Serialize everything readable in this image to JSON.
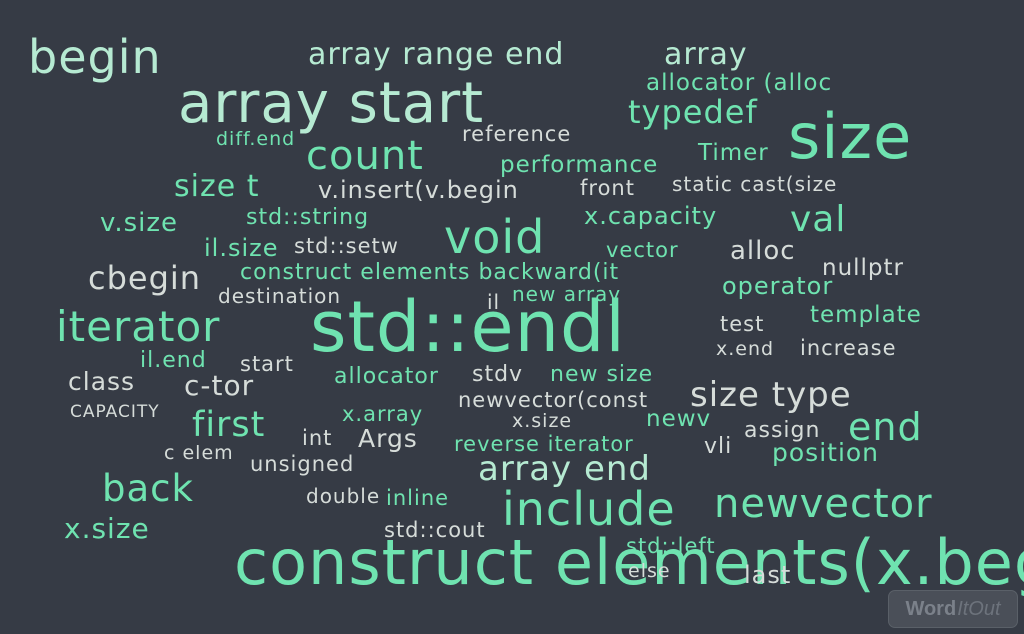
{
  "words": [
    "begin",
    "array range end",
    "array",
    "allocator (alloc",
    "array start",
    "typedef",
    "size",
    "diff.end",
    "reference",
    "count",
    "performance",
    "Timer",
    "size t",
    "v.insert(v.begin",
    "front",
    "static cast(size",
    "v.size",
    "std::string",
    "x.capacity",
    "val",
    "void",
    "il.size",
    "std::setw",
    "vector",
    "alloc",
    "cbegin",
    "construct elements backward(it",
    "nullptr",
    "destination",
    "new array",
    "operator",
    "iterator",
    "std::endl",
    "il",
    "test",
    "template",
    "il.end",
    "start",
    "x.end",
    "increase",
    "class",
    "c-tor",
    "allocator",
    "stdv",
    "new size",
    "CAPACITY",
    "newvector(const",
    "size type",
    "first",
    "x.array",
    "x.size",
    "newv",
    "end",
    "int",
    "Args",
    "reverse iterator",
    "assign",
    "c elem",
    "vli",
    "unsigned",
    "array end",
    "position",
    "back",
    "double",
    "inline",
    "include",
    "newvector",
    "x.size",
    "std::cout",
    "construct elements(x.begin",
    "std::left",
    "else",
    "last"
  ],
  "logo": {
    "part1": "Word",
    "part2": "ItOut"
  }
}
